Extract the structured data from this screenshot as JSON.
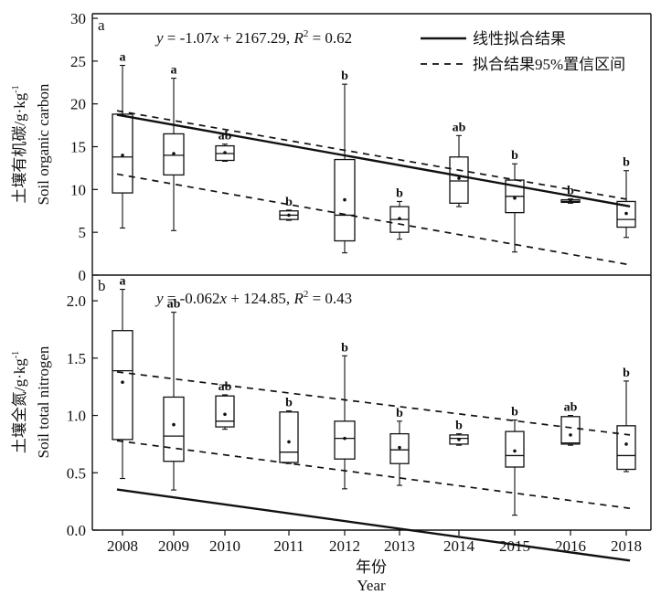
{
  "chart_data": [
    {
      "type": "box",
      "panel_label": "a",
      "ylabel_cn": "土壤有机碳/g·kg",
      "ylabel_exp": "-1",
      "ylabel_en": "Soil organic carbon",
      "ylim": [
        0,
        30
      ],
      "yticks": [
        0,
        5,
        10,
        15,
        20,
        25,
        30
      ],
      "ytick_labels": [
        "0",
        "5",
        "10",
        "15",
        "20",
        "25",
        "30"
      ],
      "equation": {
        "pre": "y",
        "mid1": " = -1.07",
        "x": "x",
        "mid2": " + 2167.29, ",
        "r": "R",
        "sup": "2",
        "post": " = 0.62"
      },
      "fit": {
        "slope": -1.07,
        "intercept": 2167.29
      },
      "ci": {
        "upper": [
          19.2,
          8.8
        ],
        "lower": [
          11.8,
          1.2
        ]
      },
      "groups": [
        {
          "year": 2008,
          "min": 5.5,
          "q1": 9.6,
          "median": 13.8,
          "q3": 18.8,
          "max": 24.5,
          "mean": 14.0,
          "letter": "a"
        },
        {
          "year": 2009,
          "min": 5.2,
          "q1": 11.7,
          "median": 14.0,
          "q3": 16.5,
          "max": 23.0,
          "mean": 14.2,
          "letter": "a"
        },
        {
          "year": 2010,
          "min": 13.3,
          "q1": 13.4,
          "median": 14.2,
          "q3": 15.1,
          "max": 15.3,
          "mean": 14.3,
          "letter": "ab"
        },
        {
          "year": 2011,
          "min": 6.4,
          "q1": 6.5,
          "median": 7.0,
          "q3": 7.5,
          "max": 7.6,
          "mean": 7.0,
          "letter": "b"
        },
        {
          "year": 2012,
          "min": 2.6,
          "q1": 4.0,
          "median": 7.0,
          "q3": 13.5,
          "max": 22.3,
          "mean": 8.8,
          "letter": "b"
        },
        {
          "year": 2013,
          "min": 4.2,
          "q1": 5.0,
          "median": 6.5,
          "q3": 8.0,
          "max": 8.6,
          "mean": 6.6,
          "letter": "b"
        },
        {
          "year": 2014,
          "min": 8.0,
          "q1": 8.4,
          "median": 11.0,
          "q3": 13.8,
          "max": 16.3,
          "mean": 11.3,
          "letter": "ab"
        },
        {
          "year": 2015,
          "min": 2.7,
          "q1": 7.3,
          "median": 9.2,
          "q3": 11.1,
          "max": 13.0,
          "mean": 9.0,
          "letter": "b"
        },
        {
          "year": 2016,
          "min": 8.4,
          "q1": 8.5,
          "median": 8.6,
          "q3": 8.8,
          "max": 8.9,
          "mean": 8.6,
          "letter": "b"
        },
        {
          "year": 2018,
          "min": 4.4,
          "q1": 5.6,
          "median": 6.5,
          "q3": 8.6,
          "max": 12.2,
          "mean": 7.2,
          "letter": "b"
        }
      ]
    },
    {
      "type": "box",
      "panel_label": "b",
      "ylabel_cn": "土壤全氮/g·kg",
      "ylabel_exp": "-1",
      "ylabel_en": "Soil total nitrogen",
      "ylim": [
        0,
        2.2
      ],
      "yticks": [
        0,
        0.5,
        1.0,
        1.5,
        2.0
      ],
      "ytick_labels": [
        "0.0",
        "0.5",
        "1.0",
        "1.5",
        "2.0"
      ],
      "equation": {
        "pre": "y",
        "mid1": " = -0.062",
        "x": "x",
        "mid2": " + 124.85, ",
        "r": "R",
        "sup": "2",
        "post": " = 0.43"
      },
      "fit": {
        "slope": -0.062,
        "intercept": 124.85
      },
      "ci": {
        "upper": [
          1.38,
          0.83
        ],
        "lower": [
          0.78,
          0.19
        ]
      },
      "groups": [
        {
          "year": 2008,
          "min": 0.45,
          "q1": 0.79,
          "median": 1.39,
          "q3": 1.74,
          "max": 2.1,
          "mean": 1.29,
          "letter": "a"
        },
        {
          "year": 2009,
          "min": 0.35,
          "q1": 0.6,
          "median": 0.82,
          "q3": 1.16,
          "max": 1.9,
          "mean": 0.92,
          "letter": "ab"
        },
        {
          "year": 2010,
          "min": 0.88,
          "q1": 0.9,
          "median": 0.95,
          "q3": 1.17,
          "max": 1.18,
          "mean": 1.01,
          "letter": "ab"
        },
        {
          "year": 2011,
          "min": 0.58,
          "q1": 0.59,
          "median": 0.68,
          "q3": 1.03,
          "max": 1.04,
          "mean": 0.77,
          "letter": "b"
        },
        {
          "year": 2012,
          "min": 0.36,
          "q1": 0.62,
          "median": 0.8,
          "q3": 0.95,
          "max": 1.52,
          "mean": 0.8,
          "letter": "b"
        },
        {
          "year": 2013,
          "min": 0.39,
          "q1": 0.58,
          "median": 0.7,
          "q3": 0.84,
          "max": 0.95,
          "mean": 0.72,
          "letter": "b"
        },
        {
          "year": 2014,
          "min": 0.74,
          "q1": 0.75,
          "median": 0.8,
          "q3": 0.83,
          "max": 0.84,
          "mean": 0.79,
          "letter": "b"
        },
        {
          "year": 2015,
          "min": 0.13,
          "q1": 0.55,
          "median": 0.65,
          "q3": 0.86,
          "max": 0.96,
          "mean": 0.69,
          "letter": "b"
        },
        {
          "year": 2016,
          "min": 0.74,
          "q1": 0.75,
          "median": 0.76,
          "q3": 0.99,
          "max": 1.0,
          "mean": 0.83,
          "letter": "ab"
        },
        {
          "year": 2018,
          "min": 0.51,
          "q1": 0.53,
          "median": 0.65,
          "q3": 0.91,
          "max": 1.3,
          "mean": 0.75,
          "letter": "b"
        }
      ]
    }
  ],
  "x_categories": [
    "2008",
    "2009",
    "2010",
    "2011",
    "2012",
    "2013",
    "2014",
    "2015",
    "2016",
    "2018"
  ],
  "xlabel_cn": "年份",
  "xlabel_en": "Year",
  "legend": {
    "fit_label": "线性拟合结果",
    "ci_label": "拟合结果95%置信区间"
  }
}
